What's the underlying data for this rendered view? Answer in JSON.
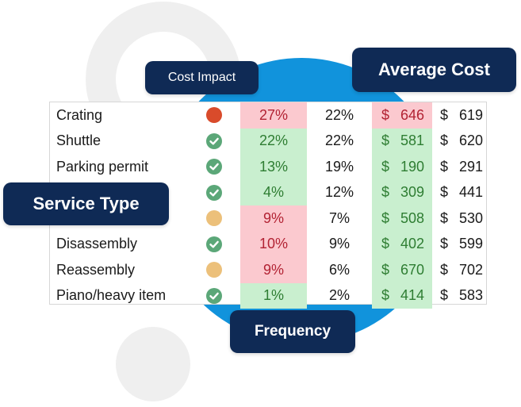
{
  "badges": {
    "cost_impact": "Cost Impact",
    "average_cost": "Average Cost",
    "service_type": "Service Type",
    "frequency": "Frequency"
  },
  "colors": {
    "navy": "#0f2a55",
    "blue_circle": "#1193dc",
    "good_bg": "#c9efcf",
    "bad_bg": "#fbc9cf"
  },
  "rows": [
    {
      "name": "Crating",
      "status": "red-dot-icon",
      "cost_impact": "27%",
      "ci_tone": "bad",
      "frequency": "22%",
      "avg_cost_sym": "$",
      "avg_cost": "646",
      "ac_tone": "bad",
      "avg_cost2_sym": "$",
      "avg_cost2": "619"
    },
    {
      "name": "Shuttle",
      "status": "check-icon",
      "cost_impact": "22%",
      "ci_tone": "good",
      "frequency": "22%",
      "avg_cost_sym": "$",
      "avg_cost": "581",
      "ac_tone": "good",
      "avg_cost2_sym": "$",
      "avg_cost2": "620"
    },
    {
      "name": "Parking permit",
      "status": "check-icon",
      "cost_impact": "13%",
      "ci_tone": "good",
      "frequency": "19%",
      "avg_cost_sym": "$",
      "avg_cost": "190",
      "ac_tone": "good",
      "avg_cost2_sym": "$",
      "avg_cost2": "291"
    },
    {
      "name": "",
      "status": "check-icon",
      "cost_impact": "4%",
      "ci_tone": "good",
      "frequency": "12%",
      "avg_cost_sym": "$",
      "avg_cost": "309",
      "ac_tone": "good",
      "avg_cost2_sym": "$",
      "avg_cost2": "441"
    },
    {
      "name": "",
      "status": "amber-dot-icon",
      "cost_impact": "9%",
      "ci_tone": "bad",
      "frequency": "7%",
      "avg_cost_sym": "$",
      "avg_cost": "508",
      "ac_tone": "good",
      "avg_cost2_sym": "$",
      "avg_cost2": "530"
    },
    {
      "name": "Disassembly",
      "status": "check-icon",
      "cost_impact": "10%",
      "ci_tone": "bad",
      "frequency": "9%",
      "avg_cost_sym": "$",
      "avg_cost": "402",
      "ac_tone": "good",
      "avg_cost2_sym": "$",
      "avg_cost2": "599"
    },
    {
      "name": "Reassembly",
      "status": "amber-dot-icon",
      "cost_impact": "9%",
      "ci_tone": "bad",
      "frequency": "6%",
      "avg_cost_sym": "$",
      "avg_cost": "670",
      "ac_tone": "good",
      "avg_cost2_sym": "$",
      "avg_cost2": "702"
    },
    {
      "name": "Piano/heavy item",
      "status": "check-icon",
      "cost_impact": "1%",
      "ci_tone": "good",
      "frequency": "2%",
      "avg_cost_sym": "$",
      "avg_cost": "414",
      "ac_tone": "good",
      "avg_cost2_sym": "$",
      "avg_cost2": "583"
    }
  ]
}
